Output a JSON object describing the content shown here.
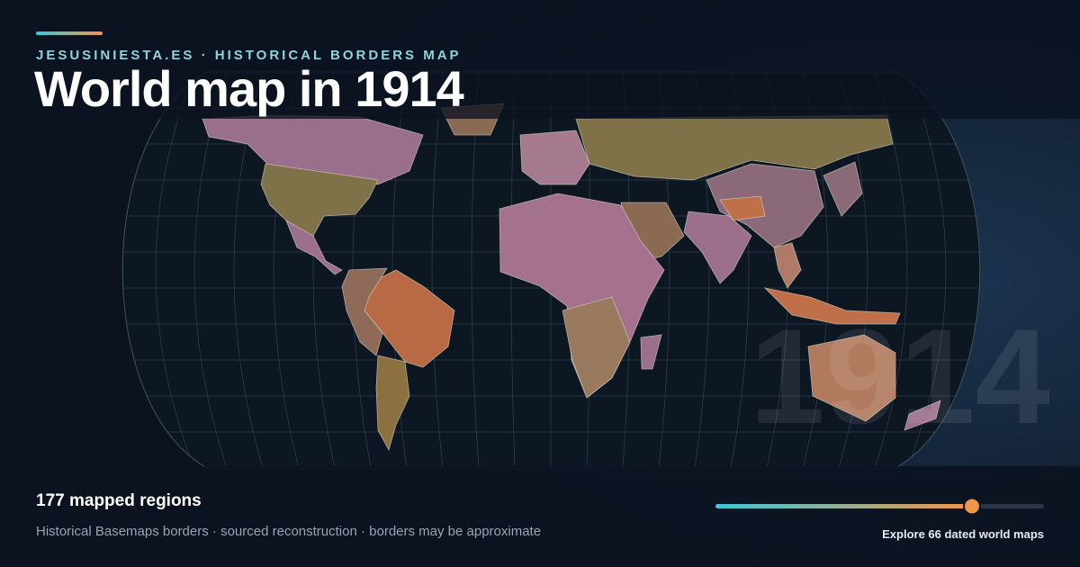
{
  "header": {
    "eyebrow": "JESUSINIESTA.ES · HISTORICAL BORDERS MAP",
    "title": "World map in 1914"
  },
  "watermark": "1914",
  "footer": {
    "stat": "177 mapped regions",
    "note": "Historical Basemaps borders · sourced reconstruction · borders may be approximate",
    "cta": "Explore 66 dated world maps"
  }
}
